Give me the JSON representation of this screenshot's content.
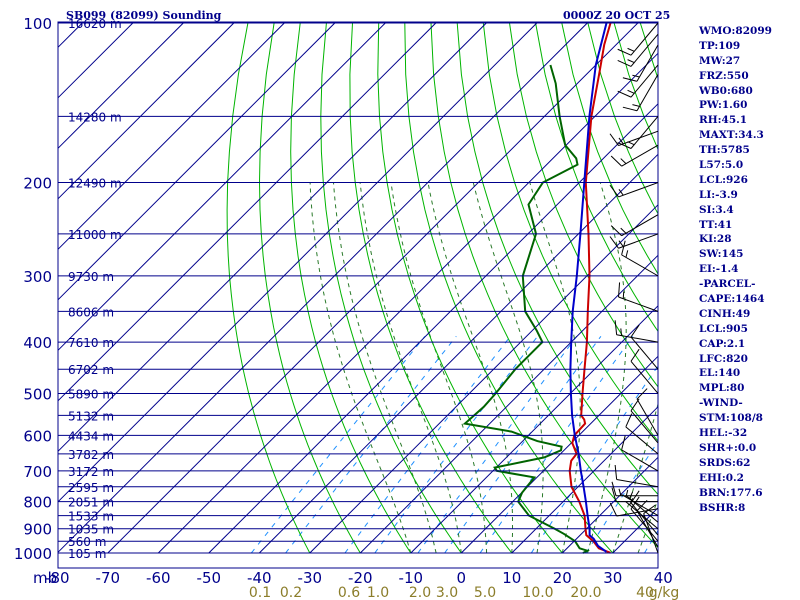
{
  "header": {
    "station": "SB099 (82099) Sounding",
    "valid_time": "0000Z 20 OCT 25"
  },
  "indices": [
    "WMO:82099",
    "TP:109",
    "MW:27",
    "FRZ:550",
    "WB0:680",
    "PW:1.60",
    "RH:45.1",
    "MAXT:34.3",
    "TH:5785",
    "L57:5.0",
    "LCL:926",
    "LI:-3.9",
    "SI:3.4",
    "TT:41",
    "KI:28",
    "SW:145",
    "EI:-1.4",
    "-PARCEL-",
    "CAPE:1464",
    "CINH:49",
    "LCL:905",
    "CAP:2.1",
    "LFC:820",
    "EL:140",
    "MPL:80",
    "-WIND-",
    "STM:108/8",
    "HEL:-32",
    "SHR+:0.0",
    "SRDS:62",
    "EHI:0.2",
    "BRN:177.6",
    "BSHR:8"
  ],
  "colors": {
    "frame": "#00008b",
    "isotherm": "#00008b",
    "dry_adiabat": "#00b400",
    "moist_adiabat": "#2a7a2a",
    "mixing_ratio": "#1e90ff",
    "temperature": "#cc0000",
    "dewpoint": "#006400",
    "parcel": "#0000cc",
    "mixing_label": "#8b7d2a"
  },
  "chart_data": {
    "type": "line",
    "title": "SB099 (82099) Sounding",
    "x_axis": {
      "unit_label": "mb",
      "range": [
        -80,
        40
      ],
      "ticks": [
        "-80",
        "-70",
        "-60",
        "-50",
        "-40",
        "-30",
        "-20",
        "-10",
        "0",
        "10",
        "20",
        "30",
        "40"
      ]
    },
    "y_axis": {
      "scale": "log",
      "range": [
        1000,
        100
      ],
      "ticks": [
        "100",
        "200",
        "300",
        "400",
        "500",
        "600",
        "700",
        "800",
        "900",
        "1000"
      ]
    },
    "mixing_ratio_labels": [
      "0.1",
      "0.2",
      "0.6",
      "1.0",
      "2.0",
      "3.0",
      "5.0",
      "10.0",
      "20.0",
      "40",
      "g/kg"
    ],
    "height_labels": [
      {
        "p": 100,
        "label": "16620 m"
      },
      {
        "p": 150,
        "label": "14280 m"
      },
      {
        "p": 200,
        "label": "12490 m"
      },
      {
        "p": 250,
        "label": "11000 m"
      },
      {
        "p": 300,
        "label": "9730 m"
      },
      {
        "p": 350,
        "label": "8606 m"
      },
      {
        "p": 400,
        "label": "7610 m"
      },
      {
        "p": 450,
        "label": "6702 m"
      },
      {
        "p": 500,
        "label": "5890 m"
      },
      {
        "p": 550,
        "label": "5132 m"
      },
      {
        "p": 600,
        "label": "4434 m"
      },
      {
        "p": 650,
        "label": "3782 m"
      },
      {
        "p": 700,
        "label": "3172 m"
      },
      {
        "p": 750,
        "label": "2595 m"
      },
      {
        "p": 800,
        "label": "2051 m"
      },
      {
        "p": 850,
        "label": "1533 m"
      },
      {
        "p": 900,
        "label": "1035 m"
      },
      {
        "p": 950,
        "label": "560 m"
      },
      {
        "p": 1000,
        "label": "105 m"
      }
    ],
    "series": [
      {
        "key": "temperature",
        "points": [
          [
            999,
            29.5
          ],
          [
            980,
            26.3
          ],
          [
            950,
            23.8
          ],
          [
            925,
            21.2
          ],
          [
            900,
            19.8
          ],
          [
            850,
            17.0
          ],
          [
            800,
            13.2
          ],
          [
            750,
            8.7
          ],
          [
            700,
            5.2
          ],
          [
            670,
            3.5
          ],
          [
            650,
            3.2
          ],
          [
            620,
            0.2
          ],
          [
            600,
            -0.9
          ],
          [
            570,
            -1.1
          ],
          [
            560,
            -2.1
          ],
          [
            550,
            -3.5
          ],
          [
            500,
            -7.6
          ],
          [
            450,
            -12.0
          ],
          [
            400,
            -16.9
          ],
          [
            350,
            -22.8
          ],
          [
            300,
            -29.5
          ],
          [
            250,
            -38.0
          ],
          [
            200,
            -48.7
          ],
          [
            150,
            -60.7
          ],
          [
            125,
            -67.5
          ],
          [
            110,
            -72.3
          ],
          [
            100,
            -75.4
          ]
        ]
      },
      {
        "key": "dewpoint",
        "points": [
          [
            1000,
            24.1
          ],
          [
            990,
            24.5
          ],
          [
            980,
            22.5
          ],
          [
            950,
            20.2
          ],
          [
            920,
            16.5
          ],
          [
            900,
            13.7
          ],
          [
            850,
            6.0
          ],
          [
            800,
            1.1
          ],
          [
            770,
            0.1
          ],
          [
            720,
            -0.5
          ],
          [
            700,
            -9.2
          ],
          [
            690,
            -10.3
          ],
          [
            660,
            -2.5
          ],
          [
            640,
            -0.6
          ],
          [
            630,
            -1.2
          ],
          [
            615,
            -7.1
          ],
          [
            590,
            -14.1
          ],
          [
            570,
            -24.9
          ],
          [
            530,
            -24.5
          ],
          [
            500,
            -24.8
          ],
          [
            450,
            -25.7
          ],
          [
            400,
            -25.7
          ],
          [
            380,
            -29.2
          ],
          [
            350,
            -35.2
          ],
          [
            300,
            -42.7
          ],
          [
            250,
            -48.4
          ],
          [
            220,
            -55.7
          ],
          [
            200,
            -57.2
          ],
          [
            185,
            -53.9
          ],
          [
            180,
            -55.4
          ],
          [
            170,
            -60.2
          ],
          [
            150,
            -67.0
          ],
          [
            130,
            -74.3
          ],
          [
            120,
            -79.0
          ]
        ]
      },
      {
        "key": "parcel",
        "points": [
          [
            995,
            28.5
          ],
          [
            970,
            25.7
          ],
          [
            940,
            23.4
          ],
          [
            926,
            21.9
          ],
          [
            900,
            20.6
          ],
          [
            850,
            17.6
          ],
          [
            800,
            14.5
          ],
          [
            750,
            11.1
          ],
          [
            700,
            7.4
          ],
          [
            650,
            3.6
          ],
          [
            600,
            -0.8
          ],
          [
            550,
            -5.3
          ],
          [
            500,
            -9.9
          ],
          [
            450,
            -14.8
          ],
          [
            400,
            -20.0
          ],
          [
            350,
            -25.8
          ],
          [
            300,
            -32.0
          ],
          [
            250,
            -39.6
          ],
          [
            200,
            -49.0
          ],
          [
            150,
            -61.1
          ],
          [
            120,
            -70.0
          ],
          [
            100,
            -76.2
          ]
        ]
      }
    ],
    "wind_barbs": [
      {
        "p": 1000,
        "dir": 160,
        "spd": 10
      },
      {
        "p": 975,
        "dir": 150,
        "spd": 10
      },
      {
        "p": 950,
        "dir": 140,
        "spd": 10
      },
      {
        "p": 925,
        "dir": 140,
        "spd": 10
      },
      {
        "p": 900,
        "dir": 130,
        "spd": 5
      },
      {
        "p": 875,
        "dir": 130,
        "spd": 5
      },
      {
        "p": 850,
        "dir": 120,
        "spd": 5
      },
      {
        "p": 825,
        "dir": 80,
        "spd": 10
      },
      {
        "p": 800,
        "dir": 90,
        "spd": 10
      },
      {
        "p": 780,
        "dir": 90,
        "spd": 15
      },
      {
        "p": 750,
        "dir": 100,
        "spd": 10
      },
      {
        "p": 700,
        "dir": 120,
        "spd": 10
      },
      {
        "p": 650,
        "dir": 130,
        "spd": 10
      },
      {
        "p": 620,
        "dir": 140,
        "spd": 10
      },
      {
        "p": 600,
        "dir": 150,
        "spd": 10
      },
      {
        "p": 500,
        "dir": 140,
        "spd": 10
      },
      {
        "p": 450,
        "dir": 140,
        "spd": 10
      },
      {
        "p": 400,
        "dir": 100,
        "spd": 15
      },
      {
        "p": 350,
        "dir": 110,
        "spd": 15
      },
      {
        "p": 300,
        "dir": 120,
        "spd": 15
      },
      {
        "p": 250,
        "dir": 70,
        "spd": 15
      },
      {
        "p": 230,
        "dir": 60,
        "spd": 15
      },
      {
        "p": 200,
        "dir": 70,
        "spd": 15
      },
      {
        "p": 170,
        "dir": 60,
        "spd": 15
      },
      {
        "p": 160,
        "dir": 70,
        "spd": 15
      },
      {
        "p": 150,
        "dir": 40,
        "spd": 15
      },
      {
        "p": 125,
        "dir": 30,
        "spd": 15
      },
      {
        "p": 120,
        "dir": 40,
        "spd": 15
      },
      {
        "p": 110,
        "dir": 30,
        "spd": 15
      },
      {
        "p": 105,
        "dir": 40,
        "spd": 15
      },
      {
        "p": 100,
        "dir": 40,
        "spd": 15
      }
    ]
  }
}
